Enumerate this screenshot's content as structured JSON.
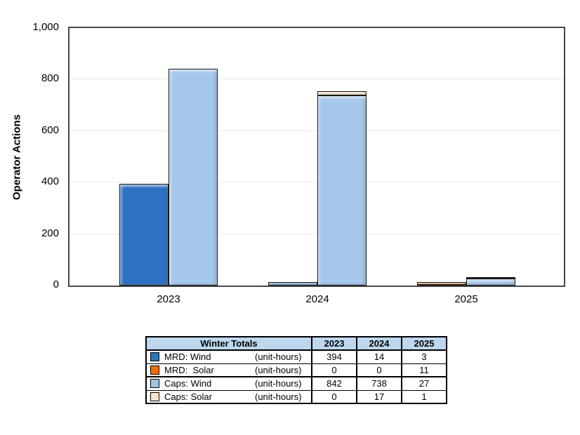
{
  "chart_data": {
    "type": "bar",
    "title": "",
    "xlabel": "",
    "ylabel": "Operator Actions",
    "ylim": [
      0,
      1000
    ],
    "ytick_values": [
      0,
      200,
      400,
      600,
      800,
      1000
    ],
    "yticks": [
      "0",
      "200",
      "400",
      "600",
      "800",
      "1,000"
    ],
    "categories": [
      "2023",
      "2024",
      "2025"
    ],
    "grid": true,
    "bars_per_category": "two stacked bars: MRD stack (Wind+Solar) and Caps stack (Wind+Solar)",
    "legend_position": "table-below",
    "series": [
      {
        "name": "MRD: Wind",
        "stack": "MRD",
        "unit": "(unit-hours)",
        "color": "#2e72c4",
        "values": [
          394,
          14,
          3
        ]
      },
      {
        "name": "MRD: Solar",
        "stack": "MRD",
        "unit": "(unit-hours)",
        "color": "#ee7303",
        "values": [
          0,
          0,
          11
        ]
      },
      {
        "name": "Caps: Wind",
        "stack": "Caps",
        "unit": "(unit-hours)",
        "color": "#a5c7ec",
        "values": [
          842,
          738,
          27
        ]
      },
      {
        "name": "Caps: Solar",
        "stack": "Caps",
        "unit": "(unit-hours)",
        "color": "#f2e0ba",
        "values": [
          0,
          17,
          1
        ]
      }
    ]
  },
  "table": {
    "title": "Winter Totals",
    "year_headers": [
      "2023",
      "2024",
      "2025"
    ],
    "header_bg": "#bdd7ee",
    "rows": [
      {
        "label": "MRD: Wind",
        "unit": "(unit-hours)",
        "swatch": "#2e75b6",
        "values": [
          "394",
          "14",
          "3"
        ]
      },
      {
        "label": "MRD:  Solar",
        "unit": "(unit-hours)",
        "swatch": "#f36f03",
        "values": [
          "0",
          "0",
          "11"
        ]
      },
      {
        "label": "Caps: Wind",
        "unit": "(unit-hours)",
        "swatch": "#9dc3e6",
        "values": [
          "842",
          "738",
          "27"
        ]
      },
      {
        "label": "Caps: Solar",
        "unit": "(unit-hours)",
        "swatch": "#fbe3c9",
        "values": [
          "0",
          "17",
          "1"
        ]
      }
    ]
  },
  "colors": {
    "plot_border": "#474747",
    "gridline": "#e9e9e9",
    "table_header_bg": "#bdd7ee"
  }
}
